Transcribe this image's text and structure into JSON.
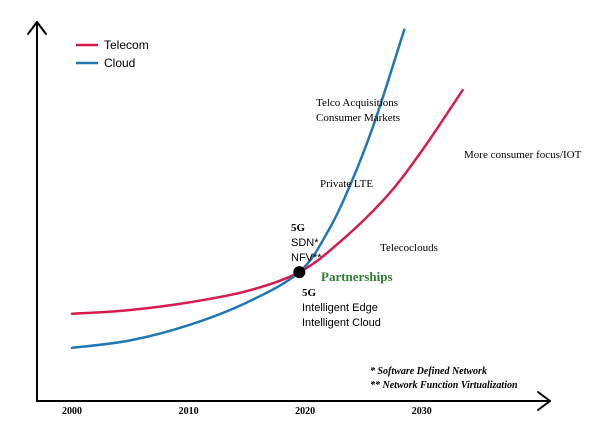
{
  "chart_data": {
    "type": "line",
    "title": "",
    "xlabel": "",
    "ylabel": "",
    "x_ticks": [
      "2000",
      "2010",
      "2020",
      "2030"
    ],
    "xlim": [
      1997,
      2041
    ],
    "ylim": [
      0,
      100
    ],
    "grid": false,
    "legend_position": "top-left",
    "series": [
      {
        "name": "Telecom",
        "color": "#d81b4e",
        "points": [
          [
            2000,
            23
          ],
          [
            2005,
            24
          ],
          [
            2010,
            26
          ],
          [
            2015,
            29
          ],
          [
            2019.5,
            34
          ],
          [
            2023,
            42
          ],
          [
            2027,
            54
          ],
          [
            2030,
            66
          ],
          [
            2033.5,
            82
          ]
        ]
      },
      {
        "name": "Cloud",
        "color": "#1f77b4",
        "points": [
          [
            2000,
            14
          ],
          [
            2005,
            16
          ],
          [
            2010,
            20
          ],
          [
            2015,
            26
          ],
          [
            2019.5,
            34
          ],
          [
            2022,
            45
          ],
          [
            2024,
            58
          ],
          [
            2026,
            74
          ],
          [
            2028.5,
            98
          ]
        ]
      }
    ],
    "intersection": {
      "x": 2019.5,
      "y": 34,
      "label": "Partnerships",
      "label_color": "#2e7d32"
    },
    "annotations": [
      {
        "id": "telco-acq",
        "lines": [
          "Telco Acquisitions",
          "Consumer Markets"
        ]
      },
      {
        "id": "consumer-focus",
        "lines": [
          "More consumer focus/IOT"
        ]
      },
      {
        "id": "private-lte",
        "lines": [
          "Private LTE"
        ]
      },
      {
        "id": "telecoclouds",
        "lines": [
          "Telecoclouds"
        ]
      },
      {
        "id": "upper-5g",
        "lines": [
          "5G",
          "SDN*",
          "NFV**"
        ]
      },
      {
        "id": "lower-5g",
        "lines": [
          "5G",
          "Intelligent Edge",
          "Intelligent Cloud"
        ]
      }
    ],
    "footnotes": [
      "* Software Defined Network",
      "** Network Function Virtualization"
    ]
  }
}
